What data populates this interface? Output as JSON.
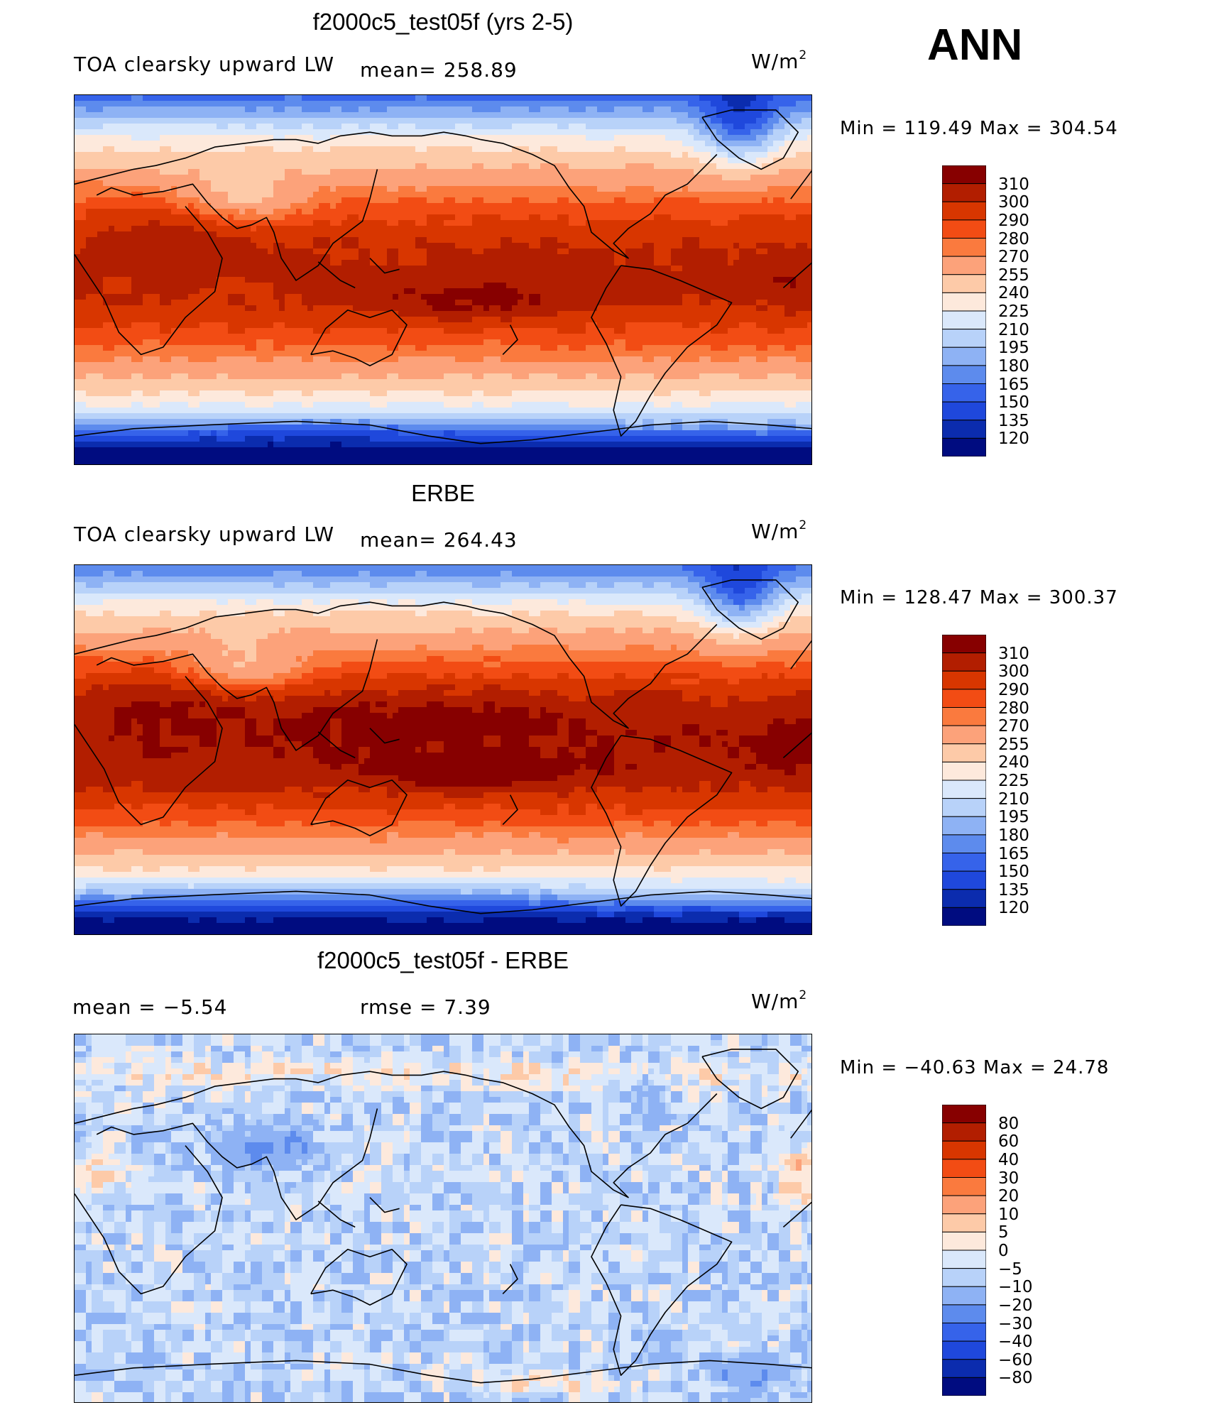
{
  "season": "ANN",
  "units_label": "W/m",
  "units_exp": "2",
  "panels": [
    {
      "id": "model",
      "title": "f2000c5_test05f (yrs 2-5)",
      "left_label": "TOA clearsky upward LW",
      "mean_text": "mean= 258.89",
      "min_max": "Min  =  119.49  Max  =  304.54",
      "colorbar_levels": [
        "310",
        "300",
        "290",
        "280",
        "270",
        "255",
        "240",
        "225",
        "210",
        "195",
        "180",
        "165",
        "150",
        "135",
        "120"
      ],
      "colors": [
        "#870000",
        "#b21e00",
        "#d83600",
        "#f24c14",
        "#fa7a3e",
        "#fca27a",
        "#fdcaa8",
        "#fde9dc",
        "#dae8fb",
        "#b8d2f9",
        "#8eb2f4",
        "#5d8bed",
        "#3663ea",
        "#1f48dc",
        "#0b2cae",
        "#000c80"
      ],
      "layout": "model"
    },
    {
      "id": "obs",
      "title": "ERBE",
      "left_label": "TOA clearsky upward LW",
      "mean_text": "mean= 264.43",
      "min_max": "Min  =  128.47  Max  =  300.37",
      "colorbar_levels": [
        "310",
        "300",
        "290",
        "280",
        "270",
        "255",
        "240",
        "225",
        "210",
        "195",
        "180",
        "165",
        "150",
        "135",
        "120"
      ],
      "colors": [
        "#870000",
        "#b21e00",
        "#d83600",
        "#f24c14",
        "#fa7a3e",
        "#fca27a",
        "#fdcaa8",
        "#fde9dc",
        "#dae8fb",
        "#b8d2f9",
        "#8eb2f4",
        "#5d8bed",
        "#3663ea",
        "#1f48dc",
        "#0b2cae",
        "#000c80"
      ],
      "layout": "obs"
    },
    {
      "id": "diff",
      "title": "f2000c5_test05f - ERBE",
      "mean_label": "mean =    −5.54",
      "rmse_label": "rmse =     7.39",
      "min_max": "Min  =  −40.63  Max  =    24.78",
      "colorbar_levels": [
        "80",
        "60",
        "40",
        "30",
        "20",
        "10",
        "5",
        "0",
        "−5",
        "−10",
        "−20",
        "−30",
        "−40",
        "−60",
        "−80"
      ],
      "colors": [
        "#870000",
        "#b21e00",
        "#d83600",
        "#f24c14",
        "#fa7a3e",
        "#fca27a",
        "#fdcaa8",
        "#fde9dc",
        "#dae8fb",
        "#b8d2f9",
        "#8eb2f4",
        "#5d8bed",
        "#3663ea",
        "#1f48dc",
        "#0b2cae",
        "#000c80"
      ],
      "layout": "diff"
    }
  ]
}
